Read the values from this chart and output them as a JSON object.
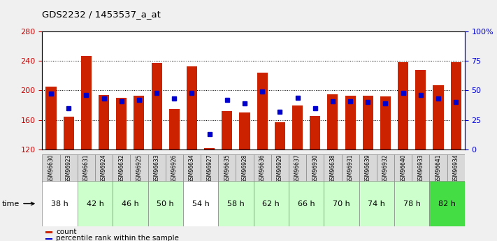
{
  "title": "GDS2232 / 1453537_a_at",
  "samples": [
    "GSM96630",
    "GSM96923",
    "GSM96631",
    "GSM96924",
    "GSM96632",
    "GSM96925",
    "GSM96633",
    "GSM96926",
    "GSM96634",
    "GSM96927",
    "GSM96635",
    "GSM96928",
    "GSM96636",
    "GSM96929",
    "GSM96637",
    "GSM96930",
    "GSM96638",
    "GSM96931",
    "GSM96639",
    "GSM96932",
    "GSM96640",
    "GSM96933",
    "GSM96641",
    "GSM96934"
  ],
  "time_groups": [
    {
      "label": "38 h",
      "samples": [
        "GSM96630",
        "GSM96923"
      ],
      "color": "#ffffff"
    },
    {
      "label": "42 h",
      "samples": [
        "GSM96631",
        "GSM96924"
      ],
      "color": "#ccffcc"
    },
    {
      "label": "46 h",
      "samples": [
        "GSM96632",
        "GSM96925"
      ],
      "color": "#ccffcc"
    },
    {
      "label": "50 h",
      "samples": [
        "GSM96633",
        "GSM96926"
      ],
      "color": "#ccffcc"
    },
    {
      "label": "54 h",
      "samples": [
        "GSM96634",
        "GSM96927"
      ],
      "color": "#ffffff"
    },
    {
      "label": "58 h",
      "samples": [
        "GSM96635",
        "GSM96928"
      ],
      "color": "#ccffcc"
    },
    {
      "label": "62 h",
      "samples": [
        "GSM96636",
        "GSM96929"
      ],
      "color": "#ccffcc"
    },
    {
      "label": "66 h",
      "samples": [
        "GSM96637",
        "GSM96930"
      ],
      "color": "#ccffcc"
    },
    {
      "label": "70 h",
      "samples": [
        "GSM96638",
        "GSM96931"
      ],
      "color": "#ccffcc"
    },
    {
      "label": "74 h",
      "samples": [
        "GSM96639",
        "GSM96932"
      ],
      "color": "#ccffcc"
    },
    {
      "label": "78 h",
      "samples": [
        "GSM96640",
        "GSM96933"
      ],
      "color": "#ccffcc"
    },
    {
      "label": "82 h",
      "samples": [
        "GSM96641",
        "GSM96934"
      ],
      "color": "#44dd44"
    }
  ],
  "count_values": [
    205,
    164,
    247,
    194,
    190,
    193,
    237,
    175,
    233,
    122,
    172,
    170,
    224,
    157,
    180,
    165,
    195,
    193,
    193,
    192,
    238,
    228,
    207,
    238
  ],
  "percentile_values": [
    47,
    35,
    46,
    43,
    41,
    42,
    48,
    43,
    48,
    13,
    42,
    39,
    49,
    32,
    44,
    35,
    41,
    41,
    40,
    39,
    48,
    46,
    43,
    40
  ],
  "ymin": 120,
  "ymax": 280,
  "yticks_left": [
    120,
    160,
    200,
    240,
    280
  ],
  "yticks_right": [
    0,
    25,
    50,
    75,
    100
  ],
  "bar_color": "#cc2200",
  "dot_color": "#0000cc",
  "bg_color": "#f0f0f0",
  "plot_bg": "#ffffff",
  "axis_color_left": "#cc0000",
  "axis_color_right": "#0000cc",
  "sample_box_color": "#d8d8d8",
  "sample_box_border": "#888888"
}
